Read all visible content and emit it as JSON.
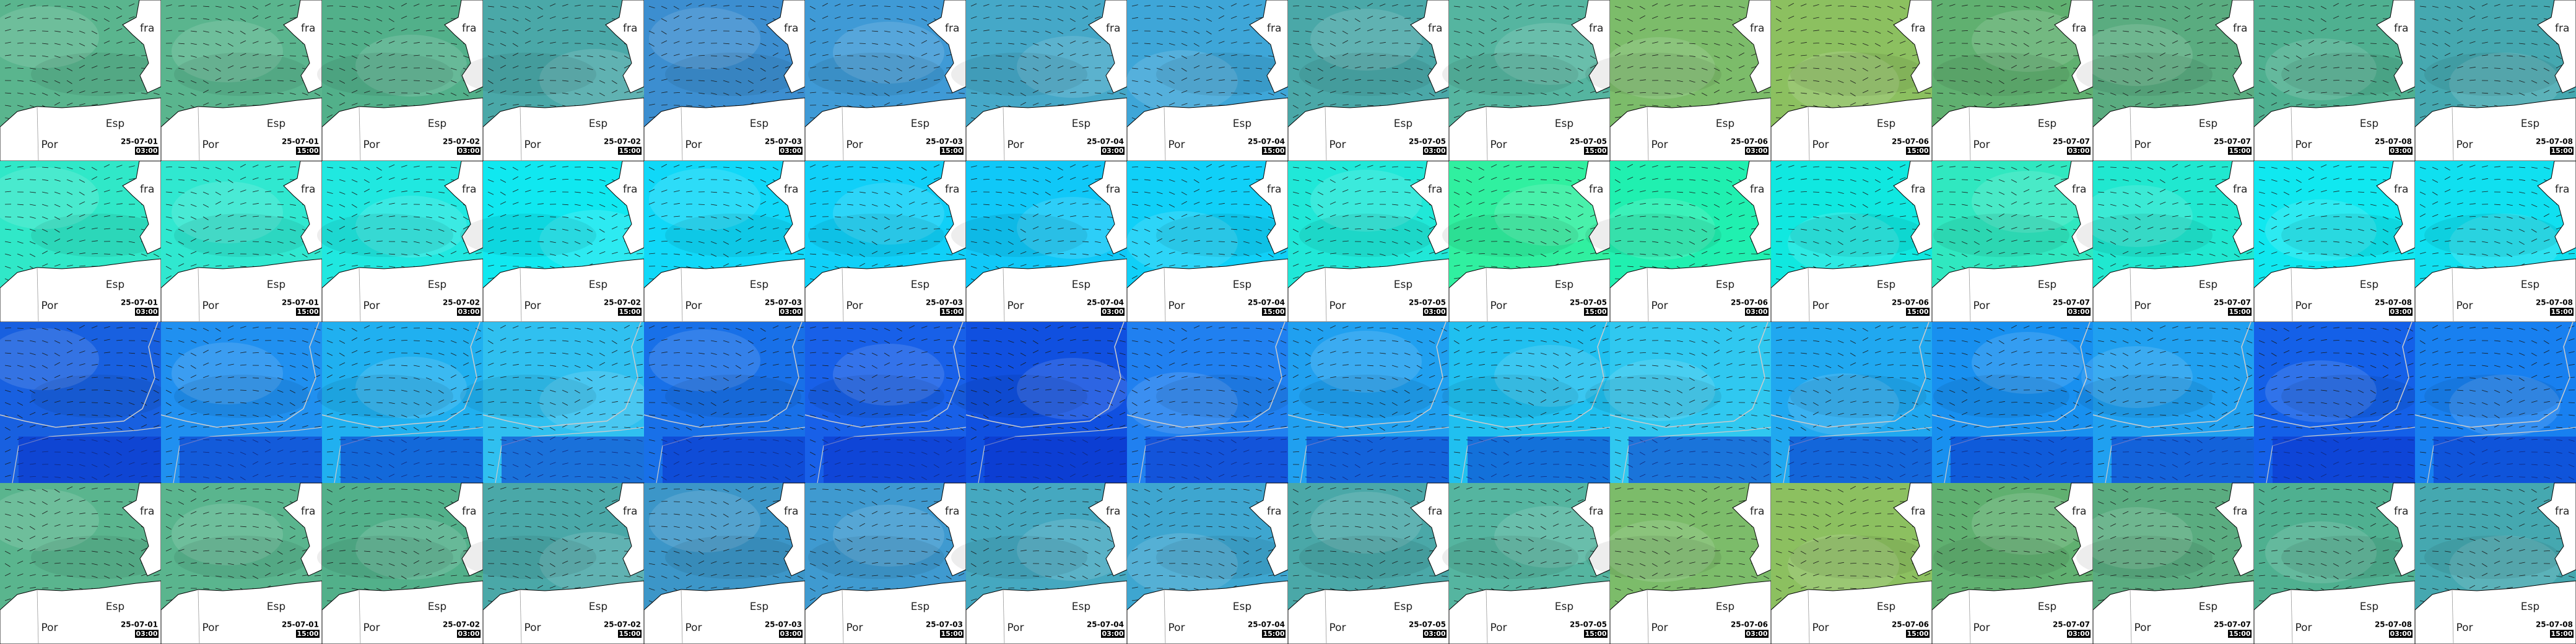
{
  "rows": [
    {
      "tiles": [
        {
          "color": "#5ab58e",
          "labels": [
            "fra",
            "Esp",
            "Por"
          ],
          "date": "25-07-01",
          "time": "03:00"
        },
        {
          "color": "#5ab58e",
          "labels": [
            "fra",
            "Esp",
            "Por"
          ],
          "date": "25-07-01",
          "time": "15:00"
        },
        {
          "color": "#52b08a",
          "labels": [
            "fra",
            "Esp",
            "Por"
          ],
          "date": "25-07-02",
          "time": "03:00"
        },
        {
          "color": "#4aa8a8",
          "labels": [
            "fra",
            "Esp",
            "Por"
          ],
          "date": "25-07-02",
          "time": "15:00"
        },
        {
          "color": "#3c8ed0",
          "labels": [
            "fra",
            "Esp",
            "Por"
          ],
          "date": "25-07-03",
          "time": "03:00"
        },
        {
          "color": "#3f9ad6",
          "labels": [
            "fra",
            "Esp",
            "Por"
          ],
          "date": "25-07-03",
          "time": "15:00"
        },
        {
          "color": "#45a8c8",
          "labels": [
            "fra",
            "Esp",
            "Por"
          ],
          "date": "25-07-04",
          "time": "03:00"
        },
        {
          "color": "#3ea6d8",
          "labels": [
            "fra",
            "Esp",
            "Por"
          ],
          "date": "25-07-04",
          "time": "15:00"
        },
        {
          "color": "#4aa8a8",
          "labels": [
            "fra",
            "Esp",
            "Por"
          ],
          "date": "25-07-05",
          "time": "03:00"
        },
        {
          "color": "#55b5a0",
          "labels": [
            "fra",
            "Esp",
            "Por"
          ],
          "date": "25-07-05",
          "time": "15:00"
        },
        {
          "color": "#7cbc6a",
          "labels": [
            "fra",
            "Esp",
            "Por"
          ],
          "date": "25-07-06",
          "time": "03:00"
        },
        {
          "color": "#8cc060",
          "labels": [
            "fra",
            "Esp",
            "Por"
          ],
          "date": "25-07-06",
          "time": "15:00"
        },
        {
          "color": "#60b070",
          "labels": [
            "fra",
            "Esp",
            "Por"
          ],
          "date": "25-07-07",
          "time": "03:00"
        },
        {
          "color": "#5aac80",
          "labels": [
            "fra",
            "Esp",
            "Por"
          ],
          "date": "25-07-07",
          "time": "15:00"
        },
        {
          "color": "#4fb090",
          "labels": [
            "fra",
            "Esp",
            "Por"
          ],
          "date": "25-07-08",
          "time": "03:00"
        },
        {
          "color": "#45a8b0",
          "labels": [
            "fra",
            "Esp",
            "Por"
          ],
          "date": "25-07-08",
          "time": "15:00"
        }
      ]
    },
    {
      "tiles": [
        {
          "color": "#30e8c8",
          "labels": [
            "fra",
            "Esp",
            "Por"
          ],
          "date": "25-07-01",
          "time": "03:00"
        },
        {
          "color": "#30e8d0",
          "labels": [
            "fra",
            "Esp",
            "Por"
          ],
          "date": "25-07-01",
          "time": "15:00"
        },
        {
          "color": "#20e8e0",
          "labels": [
            "fra",
            "Esp",
            "Por"
          ],
          "date": "25-07-02",
          "time": "03:00"
        },
        {
          "color": "#10e8f0",
          "labels": [
            "fra",
            "Esp",
            "Por"
          ],
          "date": "25-07-02",
          "time": "15:00"
        },
        {
          "color": "#10d8f8",
          "labels": [
            "fra",
            "Esp",
            "Por"
          ],
          "date": "25-07-03",
          "time": "03:00"
        },
        {
          "color": "#10d0f8",
          "labels": [
            "fra",
            "Esp",
            "Por"
          ],
          "date": "25-07-03",
          "time": "15:00"
        },
        {
          "color": "#10c8f8",
          "labels": [
            "fra",
            "Esp",
            "Por"
          ],
          "date": "25-07-04",
          "time": "03:00"
        },
        {
          "color": "#10d0f8",
          "labels": [
            "fra",
            "Esp",
            "Por"
          ],
          "date": "25-07-04",
          "time": "15:00"
        },
        {
          "color": "#20e8d8",
          "labels": [
            "fra",
            "Esp",
            "Por"
          ],
          "date": "25-07-05",
          "time": "03:00"
        },
        {
          "color": "#30f0a0",
          "labels": [
            "fra",
            "Esp",
            "Por"
          ],
          "date": "25-07-05",
          "time": "15:00"
        },
        {
          "color": "#20f0b0",
          "labels": [
            "fra",
            "Esp",
            "Por"
          ],
          "date": "25-07-06",
          "time": "03:00"
        },
        {
          "color": "#10e8e0",
          "labels": [
            "fra",
            "Esp",
            "Por"
          ],
          "date": "25-07-06",
          "time": "15:00"
        },
        {
          "color": "#30e8c0",
          "labels": [
            "fra",
            "Esp",
            "Por"
          ],
          "date": "25-07-07",
          "time": "03:00"
        },
        {
          "color": "#20e8d0",
          "labels": [
            "fra",
            "Esp",
            "Por"
          ],
          "date": "25-07-07",
          "time": "15:00"
        },
        {
          "color": "#10e8f0",
          "labels": [
            "fra",
            "Esp",
            "Por"
          ],
          "date": "25-07-08",
          "time": "03:00"
        },
        {
          "color": "#10e0f0",
          "labels": [
            "fra",
            "Esp",
            "Por"
          ],
          "date": "25-07-08",
          "time": "15:00"
        }
      ]
    },
    {
      "tiles": [
        {
          "color": "#1860e0"
        },
        {
          "color": "#2090f0"
        },
        {
          "color": "#20b0f0"
        },
        {
          "color": "#30c0f0"
        },
        {
          "color": "#1870e8"
        },
        {
          "color": "#1860e8"
        },
        {
          "color": "#1050e0"
        },
        {
          "color": "#2080f0"
        },
        {
          "color": "#20a0f0"
        },
        {
          "color": "#20c0f0"
        },
        {
          "color": "#30c8f0"
        },
        {
          "color": "#20a8f0"
        },
        {
          "color": "#1890f0"
        },
        {
          "color": "#20a0f0"
        },
        {
          "color": "#1460e8"
        },
        {
          "color": "#1880f0"
        }
      ]
    },
    {
      "tiles": [
        {
          "color": "#5ab58e",
          "labels": [
            "fra",
            "Esp",
            "Por"
          ],
          "date": "25-07-01",
          "time": "03:00"
        },
        {
          "color": "#5ab58e",
          "labels": [
            "fra",
            "Esp",
            "Por"
          ],
          "date": "25-07-01",
          "time": "15:00"
        },
        {
          "color": "#52b08a",
          "labels": [
            "fra",
            "Esp",
            "Por"
          ],
          "date": "25-07-02",
          "time": "03:00"
        },
        {
          "color": "#4aa8a8",
          "labels": [
            "fra",
            "Esp",
            "Por"
          ],
          "date": "25-07-02",
          "time": "15:00"
        },
        {
          "color": "#3c96c8",
          "labels": [
            "fra",
            "Esp",
            "Por"
          ],
          "date": "25-07-03",
          "time": "03:00"
        },
        {
          "color": "#3f9ad0",
          "labels": [
            "fra",
            "Esp",
            "Por"
          ],
          "date": "25-07-03",
          "time": "15:00"
        },
        {
          "color": "#45a8c0",
          "labels": [
            "fra",
            "Esp",
            "Por"
          ],
          "date": "25-07-04",
          "time": "03:00"
        },
        {
          "color": "#3ea6d0",
          "labels": [
            "fra",
            "Esp",
            "Por"
          ],
          "date": "25-07-04",
          "time": "15:00"
        },
        {
          "color": "#4aa8a8",
          "labels": [
            "fra",
            "Esp",
            "Por"
          ],
          "date": "25-07-05",
          "time": "03:00"
        },
        {
          "color": "#55b5a0",
          "labels": [
            "fra",
            "Esp",
            "Por"
          ],
          "date": "25-07-05",
          "time": "15:00"
        },
        {
          "color": "#7cbc6a",
          "labels": [
            "fra",
            "Esp",
            "Por"
          ],
          "date": "25-07-06",
          "time": "03:00"
        },
        {
          "color": "#8cc060",
          "labels": [
            "fra",
            "Esp",
            "Por"
          ],
          "date": "25-07-06",
          "time": "15:00"
        },
        {
          "color": "#60b070",
          "labels": [
            "fra",
            "Esp",
            "Por"
          ],
          "date": "25-07-07",
          "time": "03:00"
        },
        {
          "color": "#5aac80",
          "labels": [
            "fra",
            "Esp",
            "Por"
          ],
          "date": "25-07-07",
          "time": "15:00"
        },
        {
          "color": "#4fb090",
          "labels": [
            "fra",
            "Esp",
            "Por"
          ],
          "date": "25-07-08",
          "time": "03:00"
        },
        {
          "color": "#45a8b0",
          "labels": [
            "fra",
            "Esp",
            "Por"
          ],
          "date": "25-07-08",
          "time": "15:00"
        }
      ]
    }
  ]
}
